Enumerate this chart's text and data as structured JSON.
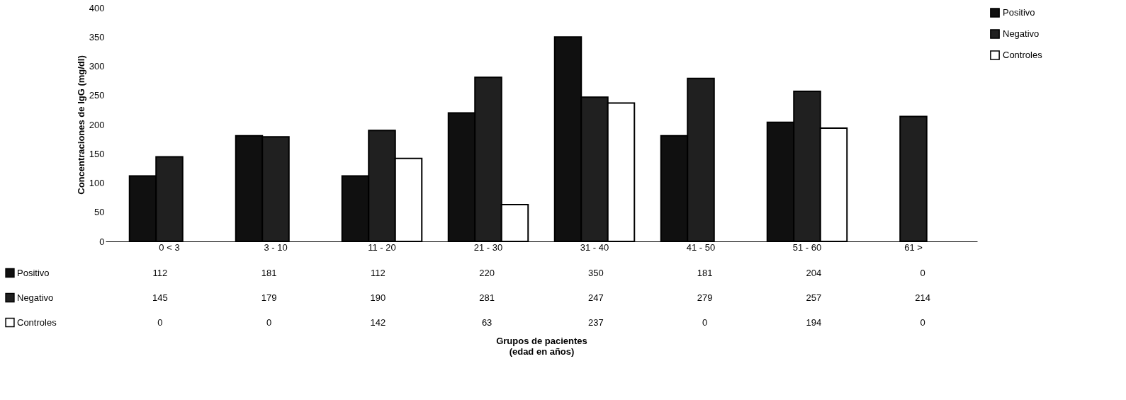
{
  "chart_data": {
    "type": "bar",
    "categories": [
      "0 < 3",
      "3 - 10",
      "11 - 20",
      "21 - 30",
      "31 - 40",
      "41 - 50",
      "51 - 60",
      "61 >"
    ],
    "series": [
      {
        "name": "Positivo",
        "color": "#101010",
        "values": [
          112,
          181,
          112,
          220,
          350,
          181,
          204,
          0
        ]
      },
      {
        "name": "Negativo",
        "color": "#202020",
        "values": [
          145,
          179,
          190,
          281,
          247,
          279,
          257,
          214
        ]
      },
      {
        "name": "Controles",
        "color": "#ffffff",
        "values": [
          0,
          0,
          142,
          63,
          237,
          0,
          194,
          0
        ]
      }
    ],
    "ylabel": "Concentraciones de IgG (mg/dl)",
    "annotations": [
      "Grupos de pacientes\n(edad en años)"
    ],
    "ylim": [
      0,
      400
    ],
    "yticks": [
      0,
      50,
      100,
      150,
      200,
      250,
      300,
      350,
      400
    ],
    "grid": false,
    "legend": "right",
    "data_labels": true
  }
}
